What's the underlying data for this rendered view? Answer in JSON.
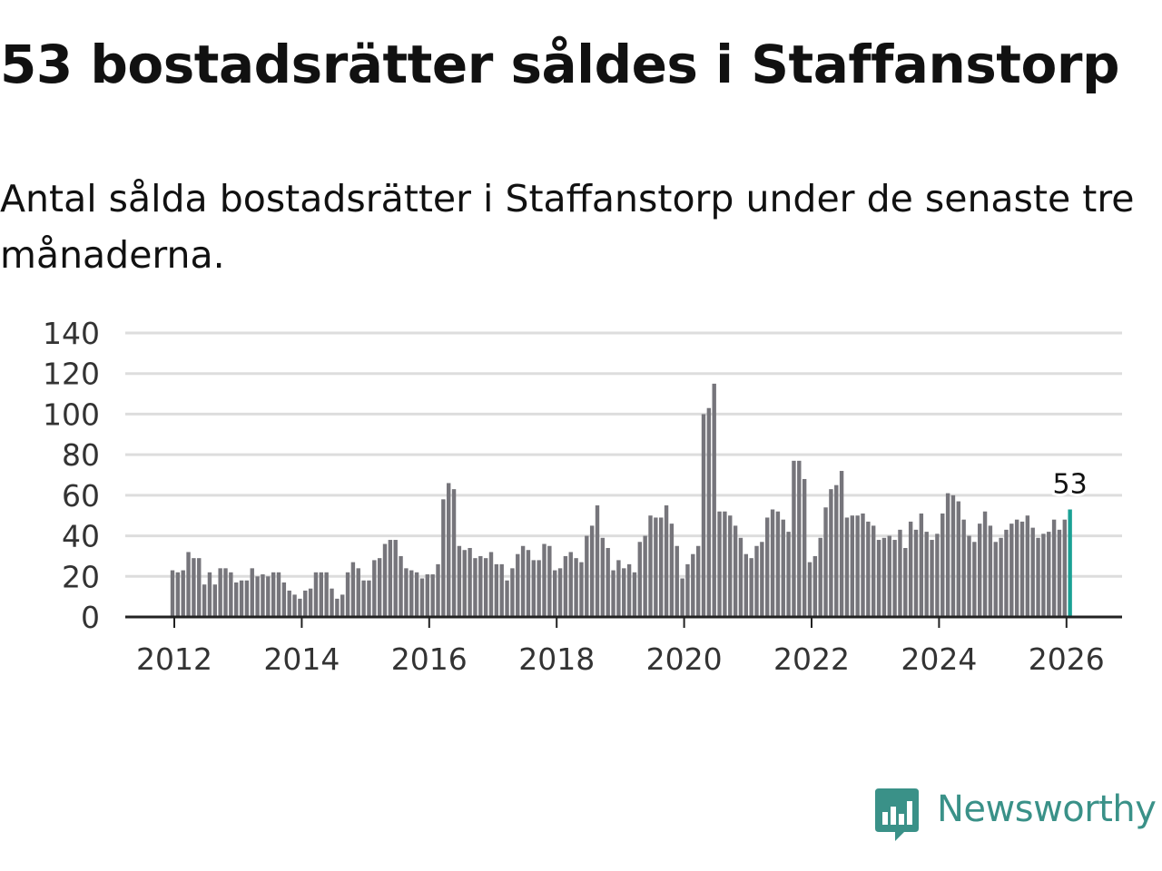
{
  "title": "53 bostadsrätter såldes i Staffanstorp",
  "subtitle": "Antal sålda bostadsrätter i Staffanstorp under de senaste tre månaderna.",
  "brand": {
    "name": "Newsworthy",
    "color": "#3a9188"
  },
  "colors": {
    "bar": "#76757b",
    "highlight": "#1aa195",
    "grid": "#dddddd",
    "axis": "#222222"
  },
  "chart_data": {
    "type": "bar",
    "title": "53 bostadsrätter såldes i Staffanstorp",
    "xlabel": "",
    "ylabel": "",
    "ylim": [
      0,
      140
    ],
    "yticks": [
      0,
      20,
      40,
      60,
      80,
      100,
      120,
      140
    ],
    "xticks": [
      "2012",
      "2014",
      "2016",
      "2018",
      "2020",
      "2022",
      "2024",
      "2026"
    ],
    "grid": true,
    "start": "2012-01",
    "frequency": "monthly",
    "series": [
      {
        "name": "Antal sålda bostadsrätter (rullande tre månader)",
        "values": [
          23,
          22,
          23,
          32,
          29,
          29,
          16,
          22,
          16,
          24,
          24,
          22,
          17,
          18,
          18,
          24,
          20,
          21,
          20,
          22,
          22,
          17,
          13,
          11,
          9,
          13,
          14,
          22,
          22,
          22,
          14,
          9,
          11,
          22,
          27,
          24,
          18,
          18,
          28,
          29,
          36,
          38,
          38,
          30,
          24,
          23,
          22,
          19,
          21,
          21,
          26,
          58,
          66,
          63,
          35,
          33,
          34,
          29,
          30,
          29,
          32,
          26,
          26,
          18,
          24,
          31,
          35,
          33,
          28,
          28,
          36,
          35,
          23,
          24,
          30,
          32,
          29,
          27,
          40,
          45,
          55,
          39,
          34,
          23,
          28,
          24,
          26,
          22,
          37,
          40,
          50,
          49,
          49,
          55,
          46,
          35,
          19,
          26,
          31,
          35,
          100,
          103,
          115,
          52,
          52,
          50,
          45,
          39,
          31,
          29,
          35,
          37,
          49,
          53,
          52,
          48,
          42,
          77,
          77,
          68,
          27,
          30,
          39,
          54,
          63,
          65,
          72,
          49,
          50,
          50,
          51,
          47,
          45,
          38,
          39,
          40,
          38,
          43,
          34,
          47,
          43,
          51,
          42,
          38,
          41,
          51,
          61,
          60,
          57,
          48,
          40,
          37,
          46,
          52,
          45,
          37,
          39,
          43,
          46,
          48,
          47,
          50,
          44,
          39,
          41,
          42,
          48,
          43,
          48,
          53
        ]
      }
    ],
    "highlight": {
      "index": "last",
      "label": "53",
      "value": 53
    }
  }
}
